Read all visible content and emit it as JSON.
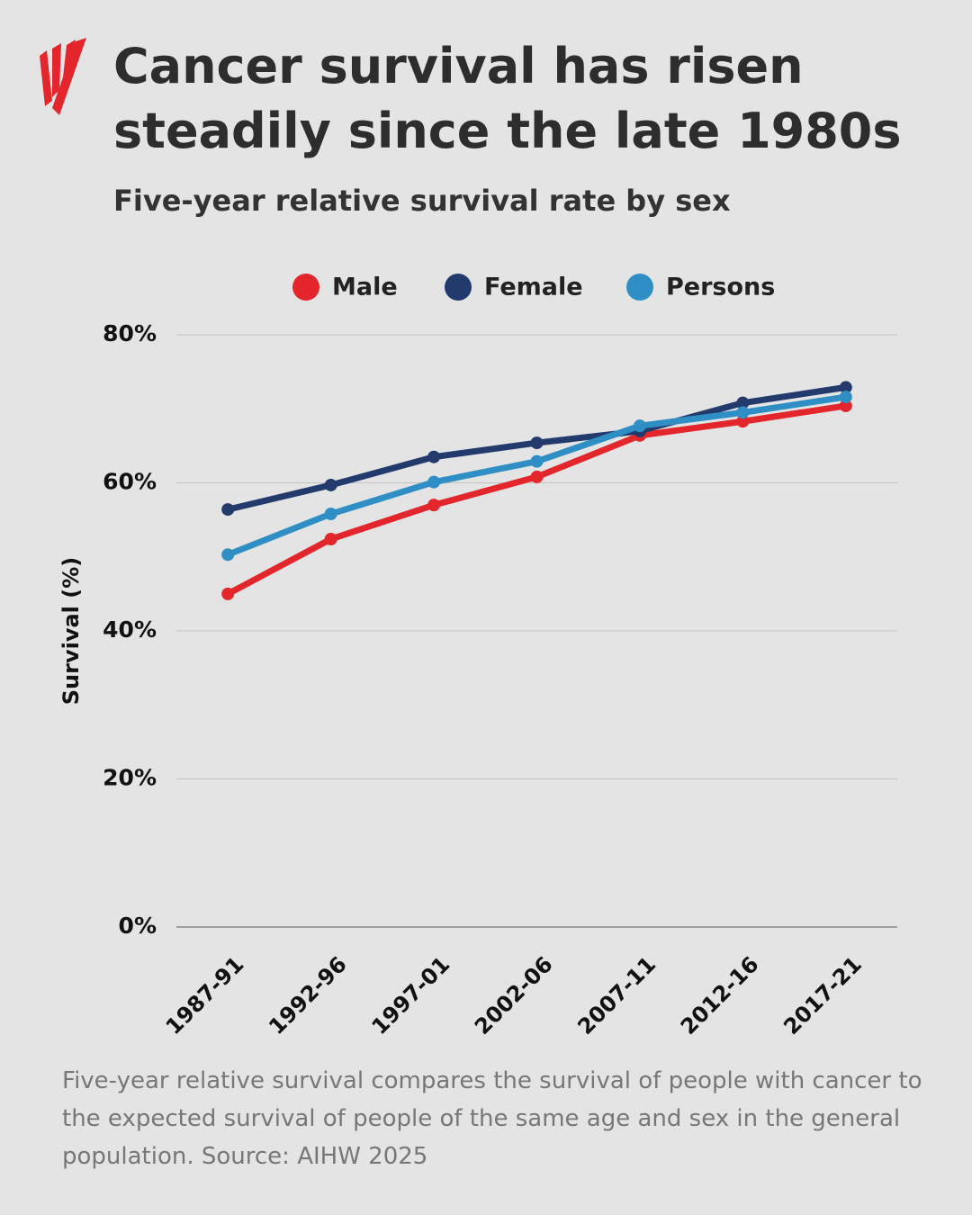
{
  "chart_data": {
    "type": "line",
    "title": "Cancer survival has risen steadily since the late 1980s",
    "subtitle": "Five-year relative survival rate by sex",
    "y_label": "Survival (%)",
    "note": "Five-year relative survival compares the survival of people with cancer to the expected survival of people of the same age and sex in the general population. Source: AIHW 2025",
    "categories": [
      "1987-91",
      "1992-96",
      "1997-01",
      "2002-06",
      "2007-11",
      "2012-16",
      "2017-21"
    ],
    "series": [
      {
        "name": "Male",
        "color": "#e3262b",
        "values": [
          45.0,
          52.4,
          57.0,
          60.8,
          66.4,
          68.3,
          70.4
        ]
      },
      {
        "name": "Female",
        "color": "#233a6d",
        "values": [
          56.4,
          59.7,
          63.5,
          65.4,
          67.0,
          70.8,
          72.9
        ]
      },
      {
        "name": "Persons",
        "color": "#2f8fc4",
        "values": [
          50.3,
          55.8,
          60.1,
          62.9,
          67.7,
          69.5,
          71.6
        ]
      }
    ],
    "ylim": [
      0,
      80
    ],
    "yticks": [
      {
        "value": 0,
        "label": "0%"
      },
      {
        "value": 20,
        "label": "20%"
      },
      {
        "value": 40,
        "label": "40%"
      },
      {
        "value": 60,
        "label": "60%"
      },
      {
        "value": 80,
        "label": "80%"
      }
    ],
    "grid": true,
    "legend": "top"
  }
}
